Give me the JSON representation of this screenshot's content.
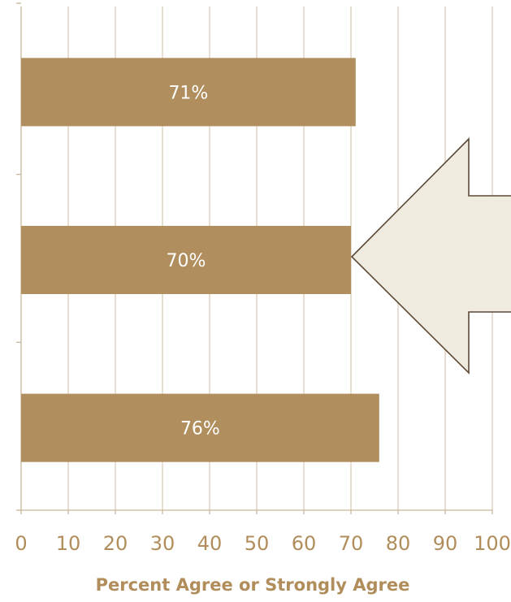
{
  "chart_data": {
    "type": "bar",
    "orientation": "horizontal",
    "categories": [
      "",
      "",
      ""
    ],
    "values": [
      71,
      70,
      76
    ],
    "data_labels": [
      "71%",
      "70%",
      "76%"
    ],
    "xlabel": "Percent Agree or Strongly Agree",
    "xlim": [
      0,
      100
    ],
    "xticks": [
      0,
      10,
      20,
      30,
      40,
      50,
      60,
      70,
      80,
      90,
      100
    ],
    "xtick_labels": [
      "0",
      "10",
      "20",
      "30",
      "40",
      "50",
      "60",
      "70",
      "80",
      "90",
      "100"
    ],
    "grid": true,
    "annotation": {
      "type": "arrow",
      "points_to_bar": 1,
      "direction": "left"
    }
  },
  "colors": {
    "bar": "#b08e5e",
    "grid": "#d8ccb8",
    "axis": "#c8b79c",
    "text_accent": "#b08d5b",
    "arrow_fill": "#efebdf",
    "arrow_stroke": "#5c4a36"
  }
}
